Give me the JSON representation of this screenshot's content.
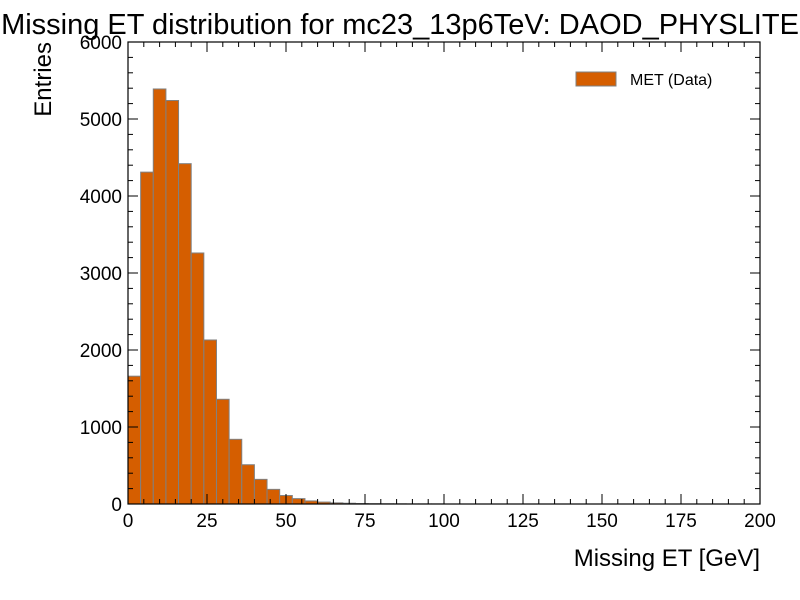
{
  "chart_data": {
    "type": "bar",
    "title": "Missing ET distribution for mc23_13p6TeV: DAOD_PHYSLITE",
    "xlabel": "Missing ET [GeV]",
    "ylabel": "Entries",
    "xlim": [
      0,
      200
    ],
    "ylim": [
      0,
      6000
    ],
    "x_ticks": [
      0,
      25,
      50,
      75,
      100,
      125,
      150,
      175,
      200
    ],
    "y_ticks": [
      0,
      1000,
      2000,
      3000,
      4000,
      5000,
      6000
    ],
    "bin_width": 4,
    "bin_edges_start": 0,
    "values": [
      1660,
      4310,
      5390,
      5240,
      4420,
      3260,
      2130,
      1360,
      840,
      510,
      320,
      190,
      110,
      70,
      40,
      25,
      15,
      10,
      6,
      4,
      3,
      2,
      1,
      1,
      1,
      0,
      0,
      0,
      0,
      0,
      0,
      0,
      0,
      0,
      0,
      0,
      0,
      0,
      0,
      0,
      0,
      0,
      0,
      0,
      0,
      0,
      0,
      0,
      0,
      0
    ],
    "series": [
      {
        "name": "MET (Data)",
        "color": "#d55e00",
        "edge_color": "#808080"
      }
    ],
    "legend_position": "top-right",
    "grid": false
  }
}
